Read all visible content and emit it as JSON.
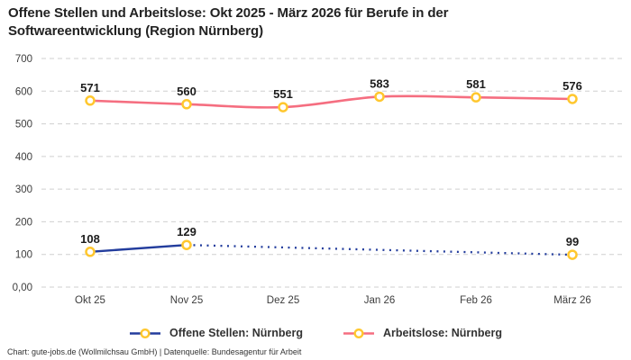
{
  "title": "Offene Stellen und Arbeitslose: Okt 2025 - März 2026 für Berufe in der Softwareentwicklung (Region Nürnberg)",
  "footer": "Chart: gute-jobs.de (Wollmilchsau GmbH) | Datenquelle: Bundesagentur für Arbeit",
  "colors": {
    "background": "#ffffff",
    "grid": "#cfcfcf",
    "axis_text": "#3d3d3d",
    "value_label": "#1c1c1c",
    "title_text": "#222222"
  },
  "chart_data": {
    "type": "line",
    "title": "Offene Stellen und Arbeitslose: Okt 2025 - März 2026 für Berufe in der Softwareentwicklung (Region Nürnberg)",
    "categories": [
      "Okt 25",
      "Nov 25",
      "Dez 25",
      "Jan 26",
      "Feb 26",
      "März 26"
    ],
    "series": [
      {
        "name": "Offene Stellen: Nürnberg",
        "color": "#233d9d",
        "values": [
          108,
          129,
          null,
          null,
          null,
          99
        ],
        "solid_through_index": 1,
        "projection_style": "dotted"
      },
      {
        "name": "Arbeitslose: Nürnberg",
        "color": "#f56e80",
        "values": [
          571,
          560,
          551,
          583,
          581,
          576
        ],
        "projection_style": "none"
      }
    ],
    "marker": {
      "ring_color": "#ffc72e",
      "fill_color": "#ffffff"
    },
    "ylim": [
      0,
      700
    ],
    "yticks": [
      {
        "value": 0,
        "label": "0,00"
      },
      {
        "value": 100,
        "label": "100"
      },
      {
        "value": 200,
        "label": "200"
      },
      {
        "value": 300,
        "label": "300"
      },
      {
        "value": 400,
        "label": "400"
      },
      {
        "value": 500,
        "label": "500"
      },
      {
        "value": 600,
        "label": "600"
      },
      {
        "value": 700,
        "label": "700"
      }
    ],
    "grid": "horizontal-dashed",
    "legend_position": "bottom",
    "data_labels": true
  }
}
